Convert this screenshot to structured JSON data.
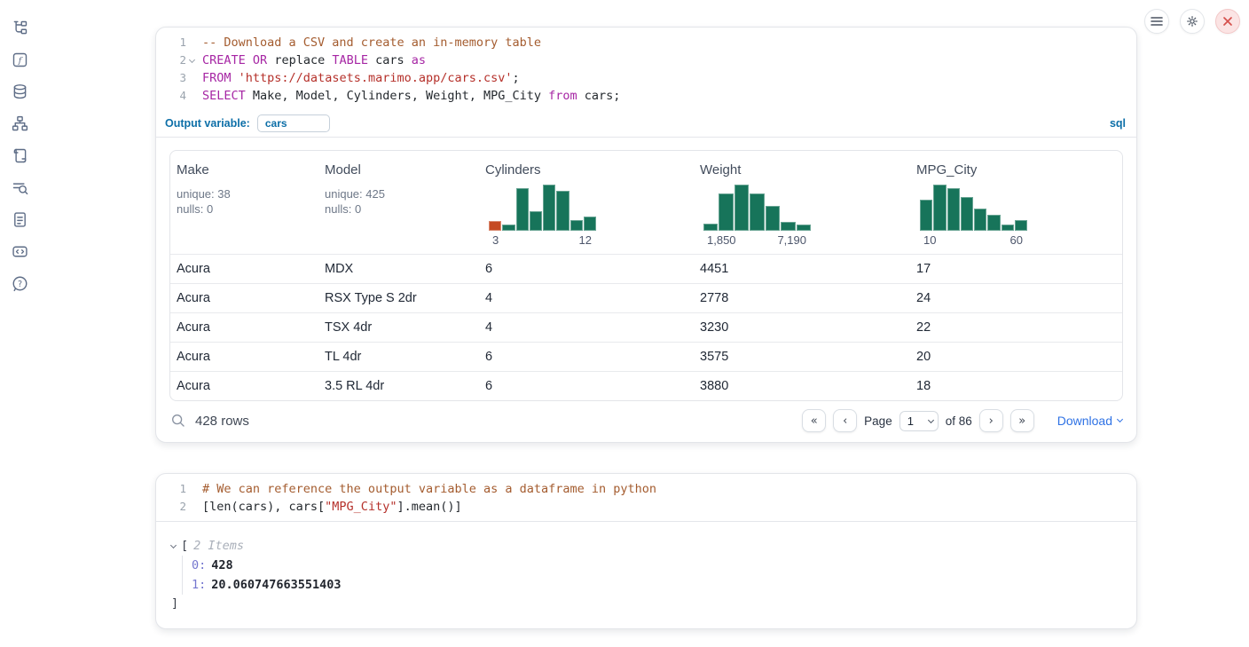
{
  "colors": {
    "accent_blue": "#0d6fa8",
    "link_blue": "#2e72e5",
    "keyword_purple": "#a626a4",
    "string_red": "#b5302a",
    "comment_brown": "#a45c2f",
    "histogram_green": "#17745a",
    "histogram_orange": "#c54a22",
    "danger_red": "#d5504c"
  },
  "sidebar": {
    "items": [
      {
        "icon": "file-explorer-tree-icon"
      },
      {
        "icon": "variables-function-icon"
      },
      {
        "icon": "datasources-database-icon"
      },
      {
        "icon": "dependency-graph-icon"
      },
      {
        "icon": "scratchpad-scroll-icon"
      },
      {
        "icon": "logs-search-icon"
      },
      {
        "icon": "documentation-page-icon"
      },
      {
        "icon": "snippets-code-icon"
      },
      {
        "icon": "help-chat-icon"
      }
    ]
  },
  "topbar": {
    "buttons": [
      {
        "icon": "menu-icon"
      },
      {
        "icon": "gear-icon"
      },
      {
        "icon": "shutdown-close-icon"
      }
    ]
  },
  "sql_cell": {
    "lines": [
      {
        "num": "1",
        "tokens": [
          {
            "t": "-- Download a CSV and create an in-memory table",
            "c": "comment"
          }
        ]
      },
      {
        "num": "2",
        "fold": true,
        "tokens": [
          {
            "t": "CREATE",
            "c": "kw"
          },
          {
            "t": " ",
            "c": "plain"
          },
          {
            "t": "OR",
            "c": "kw"
          },
          {
            "t": " replace ",
            "c": "plain"
          },
          {
            "t": "TABLE",
            "c": "kw"
          },
          {
            "t": " cars ",
            "c": "plain"
          },
          {
            "t": "as",
            "c": "kw"
          }
        ]
      },
      {
        "num": "3",
        "tokens": [
          {
            "t": "FROM",
            "c": "kw"
          },
          {
            "t": " ",
            "c": "plain"
          },
          {
            "t": "'https://datasets.marimo.app/cars.csv'",
            "c": "str"
          },
          {
            "t": ";",
            "c": "plain"
          }
        ]
      },
      {
        "num": "4",
        "tokens": [
          {
            "t": "SELECT",
            "c": "kw"
          },
          {
            "t": " Make, Model, Cylinders, Weight, MPG_City ",
            "c": "plain"
          },
          {
            "t": "from",
            "c": "kw"
          },
          {
            "t": " cars;",
            "c": "plain"
          }
        ]
      }
    ],
    "output_variable_label": "Output variable:",
    "output_variable_value": "cars",
    "language_badge": "sql"
  },
  "chart_data": [
    {
      "type": "bar",
      "title": "Cylinders column histogram",
      "x_min_label": "3",
      "x_max_label": "12",
      "values_relative": [
        0.22,
        0.14,
        0.92,
        0.42,
        1.0,
        0.86,
        0.24,
        0.3
      ],
      "bar_color": "#17745a",
      "first_bar_color": "#c54a22"
    },
    {
      "type": "bar",
      "title": "Weight column histogram",
      "x_min_label": "1,850",
      "x_max_label": "7,190",
      "values_relative": [
        0.16,
        0.8,
        1.0,
        0.8,
        0.54,
        0.2,
        0.14
      ],
      "bar_color": "#17745a"
    },
    {
      "type": "bar",
      "title": "MPG_City column histogram",
      "x_min_label": "10",
      "x_max_label": "60",
      "values_relative": [
        0.67,
        1.0,
        0.92,
        0.73,
        0.48,
        0.35,
        0.14,
        0.24
      ],
      "bar_color": "#17745a"
    }
  ],
  "table": {
    "columns": [
      {
        "name": "Make",
        "stats": [
          "unique: 38",
          "nulls: 0"
        ]
      },
      {
        "name": "Model",
        "stats": [
          "unique: 425",
          "nulls: 0"
        ]
      },
      {
        "name": "Cylinders",
        "histogram_index": 0
      },
      {
        "name": "Weight",
        "histogram_index": 1
      },
      {
        "name": "MPG_City",
        "histogram_index": 2
      }
    ],
    "rows": [
      [
        "Acura",
        "MDX",
        "6",
        "4451",
        "17"
      ],
      [
        "Acura",
        "RSX Type S 2dr",
        "4",
        "2778",
        "24"
      ],
      [
        "Acura",
        "TSX 4dr",
        "4",
        "3230",
        "22"
      ],
      [
        "Acura",
        "TL 4dr",
        "6",
        "3575",
        "20"
      ],
      [
        "Acura",
        "3.5 RL 4dr",
        "6",
        "3880",
        "18"
      ]
    ],
    "footer": {
      "row_count": "428 rows",
      "page_label": "Page",
      "page_value": "1",
      "of_label": "of 86",
      "download_label": "Download",
      "nav": {
        "first": "«",
        "prev": "‹",
        "next": "›",
        "last": "»"
      }
    }
  },
  "python_cell": {
    "lines": [
      {
        "num": "1",
        "tokens": [
          {
            "t": "# We can reference the output variable as a dataframe in python",
            "c": "comment"
          }
        ]
      },
      {
        "num": "2",
        "tokens": [
          {
            "t": "[len(cars), cars[",
            "c": "plain"
          },
          {
            "t": "\"MPG_City\"",
            "c": "str"
          },
          {
            "t": "].mean()]",
            "c": "plain"
          }
        ]
      }
    ]
  },
  "output_tree": {
    "open_bracket": "[",
    "items_label": "2 Items",
    "entries": [
      {
        "key": "0:",
        "value": "428"
      },
      {
        "key": "1:",
        "value": "20.060747663551403"
      }
    ],
    "close_bracket": "]"
  }
}
